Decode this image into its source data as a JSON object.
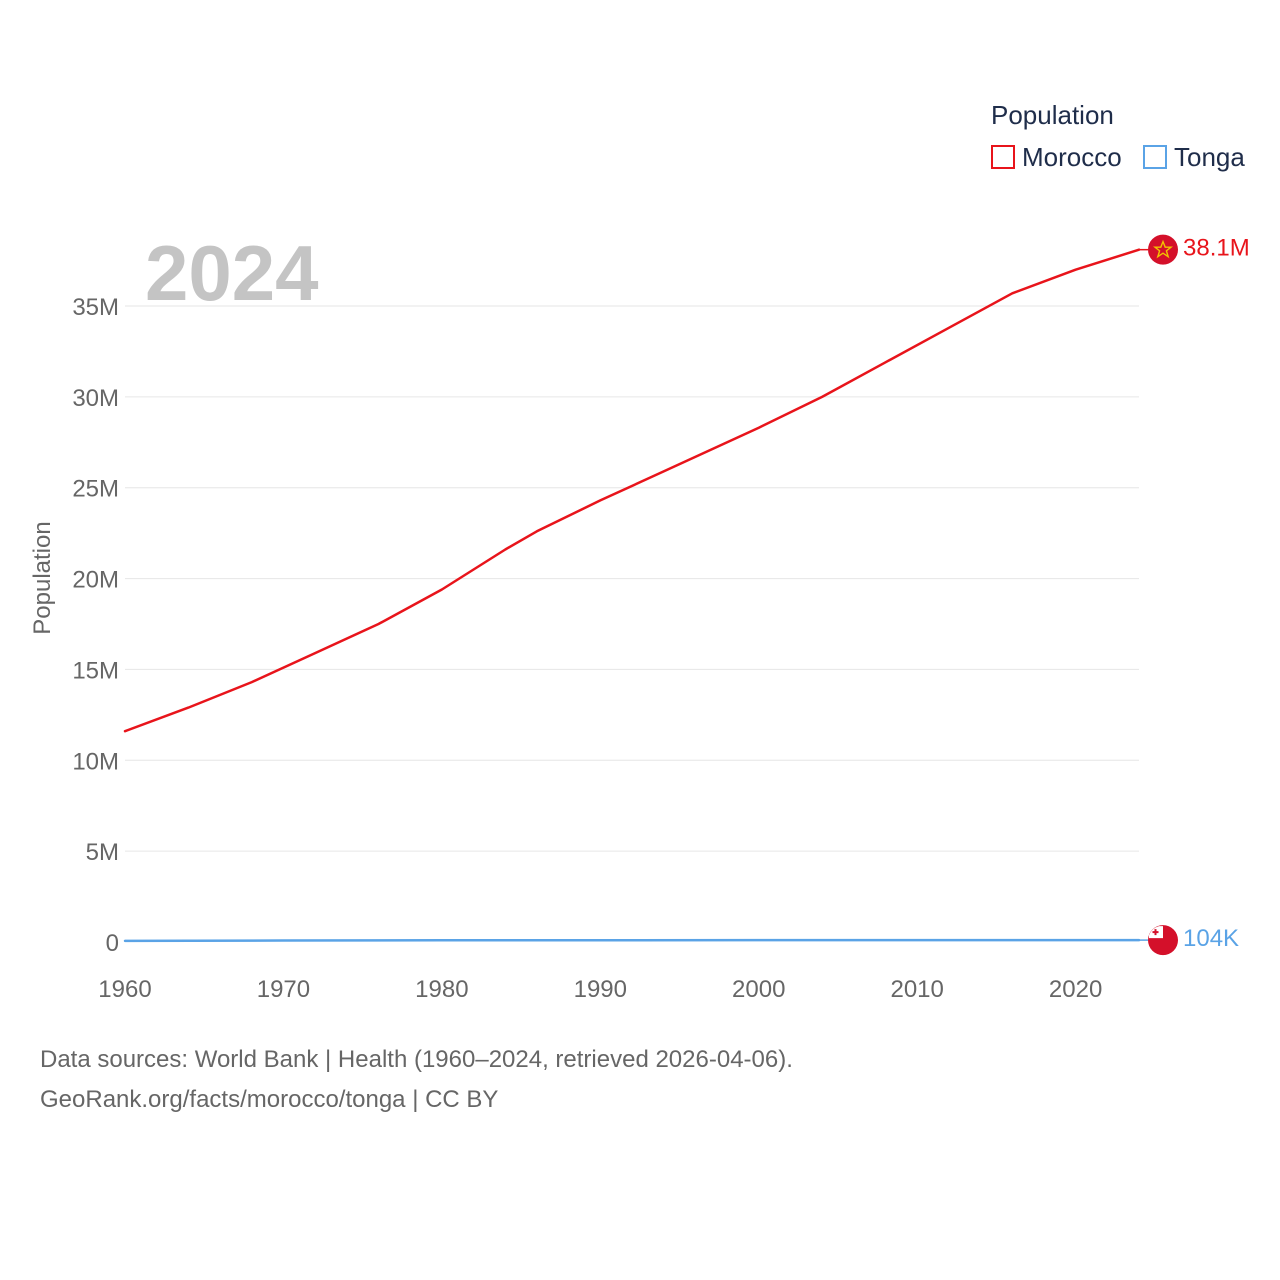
{
  "chart_data": {
    "type": "line",
    "title": "Population",
    "year_label": "2024",
    "ylabel": "Population",
    "xlabel": "",
    "xlim": [
      1960,
      2024
    ],
    "ylim": [
      0,
      38100000
    ],
    "x_ticks": [
      1960,
      1970,
      1980,
      1990,
      2000,
      2010,
      2020
    ],
    "x_tick_labels": [
      "1960",
      "1970",
      "1980",
      "1990",
      "2000",
      "2010",
      "2020"
    ],
    "y_ticks": [
      0,
      5000000,
      10000000,
      15000000,
      20000000,
      25000000,
      30000000,
      35000000
    ],
    "y_tick_labels": [
      "0",
      "5M",
      "10M",
      "15M",
      "20M",
      "25M",
      "30M",
      "35M"
    ],
    "grid": true,
    "legend_position": "top-right",
    "series": [
      {
        "name": "Morocco",
        "color": "#e8141b",
        "end_label": "38.1M",
        "flag_icon": "morocco-flag-icon",
        "x": [
          1960,
          1964,
          1968,
          1972,
          1976,
          1980,
          1984,
          1986,
          1990,
          1994,
          2000,
          2004,
          2008,
          2012,
          2016,
          2020,
          2024
        ],
        "values": [
          11600000,
          12900000,
          14300000,
          15900000,
          17500000,
          19400000,
          21600000,
          22600000,
          24300000,
          25900000,
          28300000,
          30000000,
          31900000,
          33800000,
          35700000,
          37000000,
          38100000
        ]
      },
      {
        "name": "Tonga",
        "color": "#5aa3e6",
        "end_label": "104K",
        "flag_icon": "tonga-flag-icon",
        "x": [
          1960,
          1970,
          1980,
          1990,
          2000,
          2010,
          2020,
          2024
        ],
        "values": [
          62000,
          85000,
          93000,
          95000,
          102000,
          104000,
          105000,
          104000
        ]
      }
    ]
  },
  "footer": {
    "line1": "Data sources: World Bank | Health (1960–2024, retrieved 2026-04-06).",
    "line2": "GeoRank.org/facts/morocco/tonga | CC BY"
  }
}
